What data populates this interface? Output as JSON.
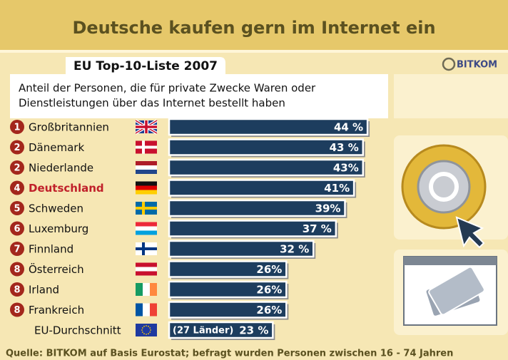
{
  "chart_data": {
    "type": "bar",
    "title": "Deutsche kaufen gern im Internet ein",
    "subtitle": "EU Top-10-Liste 2007",
    "logo": "BITKOM",
    "description": [
      "Anteil der Personen, die für private Zwecke Waren oder",
      "Dienstleistungen über das Internet bestellt haben"
    ],
    "categories": [
      "Großbritannien",
      "Dänemark",
      "Niederlande",
      "Deutschland",
      "Schweden",
      "Luxemburg",
      "Finnland",
      "Österreich",
      "Irland",
      "Frankreich",
      "EU-Durchschnitt"
    ],
    "ranks": [
      "1",
      "2",
      "2",
      "4",
      "5",
      "6",
      "7",
      "8",
      "8",
      "8",
      null
    ],
    "values": [
      44,
      43,
      43,
      41,
      39,
      37,
      32,
      26,
      26,
      26,
      23
    ],
    "value_labels": [
      "44 %",
      "43 %",
      "43%",
      "41%",
      "39%",
      "37 %",
      "32 %",
      "26%",
      "26%",
      "26%",
      "23 %"
    ],
    "label_colors": [
      "#111",
      "#111",
      "#111",
      "#c0202a",
      "#111",
      "#111",
      "#111",
      "#111",
      "#111",
      "#111",
      "#111"
    ],
    "color": "#1d3d5e",
    "annotation": "(27 Länder)",
    "source": "Quelle: BITKOM auf Basis Eurostat; befragt wurden Personen zwischen 16 - 74 Jahren"
  }
}
